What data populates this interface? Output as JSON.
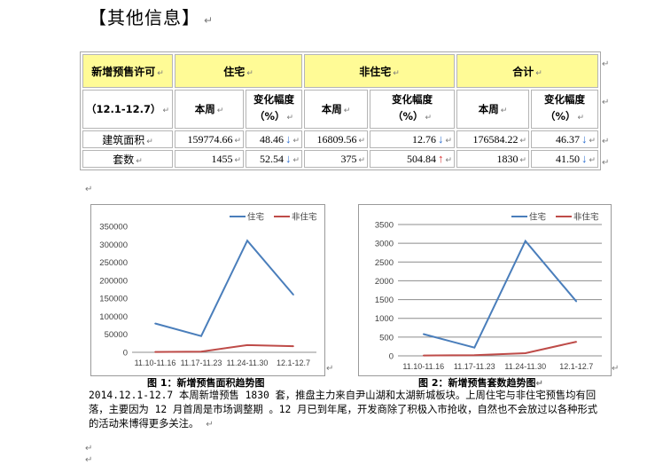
{
  "heading": "【其他信息】",
  "para_mark": "↵",
  "table": {
    "title": "新增预售许可",
    "period": "（12.1-12.7）",
    "groups": [
      "住宅",
      "非住宅",
      "合计"
    ],
    "sub_week": "本周",
    "sub_change_line1": "变化幅度",
    "sub_change_line2": "（%）",
    "rows": [
      {
        "label": "建筑面积",
        "res_week": "159774.66",
        "res_change": "48.46",
        "res_dir": "↓",
        "non_week": "16809.56",
        "non_change": "12.76",
        "non_dir": "↓",
        "tot_week": "176584.22",
        "tot_change": "46.37",
        "tot_dir": "↓"
      },
      {
        "label": "套数",
        "res_week": "1455",
        "res_change": "52.54",
        "res_dir": "↓",
        "non_week": "375",
        "non_change": "504.84",
        "non_dir": "↑",
        "tot_week": "1830",
        "tot_change": "41.50",
        "tot_dir": "↓"
      }
    ],
    "colors": {
      "header_bg": "#fffb96",
      "down": "#2e6fd0",
      "up": "#d83030"
    }
  },
  "chart_data": [
    {
      "type": "line",
      "categories": [
        "11.10-11.16",
        "11.17-11.23",
        "11.24-11.30",
        "12.1-12.7"
      ],
      "series": [
        {
          "name": "住宅",
          "color": "#4a7ebb",
          "values": [
            80000,
            45000,
            310000,
            160000
          ]
        },
        {
          "name": "非住宅",
          "color": "#be4b48",
          "values": [
            1000,
            2000,
            20000,
            17000
          ]
        }
      ],
      "ylim": [
        0,
        350000
      ],
      "yticks": [
        0,
        50000,
        100000,
        150000,
        200000,
        250000,
        300000,
        350000
      ],
      "grid": false,
      "legend": "top-right",
      "caption": "图 1：新增预售面积趋势图"
    },
    {
      "type": "line",
      "categories": [
        "11.10-11.16",
        "11.17-11.23",
        "11.24-11.30",
        "12.1-12.7"
      ],
      "series": [
        {
          "name": "住宅",
          "color": "#4a7ebb",
          "values": [
            580,
            220,
            3060,
            1450
          ]
        },
        {
          "name": "非住宅",
          "color": "#be4b48",
          "values": [
            10,
            20,
            70,
            375
          ]
        }
      ],
      "ylim": [
        0,
        3500
      ],
      "yticks": [
        0,
        500,
        1000,
        1500,
        2000,
        2500,
        3000,
        3500
      ],
      "grid": true,
      "legend": "top-right",
      "caption": "图 2：新增预售套数趋势图"
    }
  ],
  "paragraph": "2014.12.1-12.7 本周新增预售 1830 套，推盘主力来自尹山湖和太湖新城板块。上周住宅与非住宅预售均有回落，主要因为 12 月首周是市场调整期 。12 月已到年尾，开发商除了积极入市抢收，自然也不会放过以各种形式的活动来博得更多关注。"
}
